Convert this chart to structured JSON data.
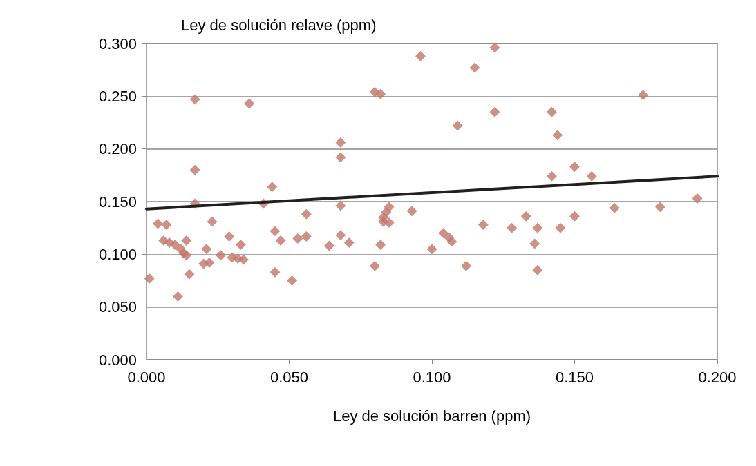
{
  "chart_data": {
    "type": "scatter",
    "ylabel": "Ley de solución relave (ppm)",
    "xlabel": "Ley de solución barren (ppm)",
    "xlim": [
      0,
      0.2
    ],
    "xticks": [
      {
        "value": 0,
        "label": "0.000"
      },
      {
        "value": 0.05,
        "label": "0.050"
      },
      {
        "value": 0.1,
        "label": "0.100"
      },
      {
        "value": 0.15,
        "label": "0.150"
      },
      {
        "value": 0.2,
        "label": "0.200"
      }
    ],
    "ylim": [
      0,
      0.3
    ],
    "yticks": [
      {
        "value": 0,
        "label": "0.000"
      },
      {
        "value": 0.05,
        "label": "0.050"
      },
      {
        "value": 0.1,
        "label": "0.100"
      },
      {
        "value": 0.15,
        "label": "0.150"
      },
      {
        "value": 0.2,
        "label": "0.200"
      },
      {
        "value": 0.25,
        "label": "0.250"
      },
      {
        "value": 0.3,
        "label": "0.300"
      }
    ],
    "grid": "y",
    "marker": "diamond",
    "series": [
      {
        "color": "#c0756a",
        "x": [
          0.001,
          0.004,
          0.007,
          0.006,
          0.008,
          0.01,
          0.011,
          0.012,
          0.013,
          0.014,
          0.014,
          0.015,
          0.017,
          0.017,
          0.017,
          0.02,
          0.021,
          0.022,
          0.023,
          0.026,
          0.029,
          0.03,
          0.032,
          0.033,
          0.034,
          0.036,
          0.041,
          0.044,
          0.045,
          0.045,
          0.047,
          0.051,
          0.053,
          0.056,
          0.056,
          0.064,
          0.068,
          0.068,
          0.068,
          0.068,
          0.071,
          0.08,
          0.08,
          0.082,
          0.082,
          0.083,
          0.083,
          0.084,
          0.085,
          0.085,
          0.093,
          0.096,
          0.1,
          0.104,
          0.106,
          0.107,
          0.109,
          0.112,
          0.115,
          0.118,
          0.122,
          0.122,
          0.128,
          0.133,
          0.136,
          0.137,
          0.137,
          0.142,
          0.142,
          0.144,
          0.145,
          0.15,
          0.15,
          0.156,
          0.164,
          0.174,
          0.18,
          0.193
        ],
        "values": [
          0.077,
          0.129,
          0.128,
          0.113,
          0.111,
          0.109,
          0.06,
          0.105,
          0.101,
          0.099,
          0.113,
          0.081,
          0.18,
          0.247,
          0.148,
          0.091,
          0.105,
          0.092,
          0.131,
          0.099,
          0.117,
          0.097,
          0.096,
          0.109,
          0.095,
          0.243,
          0.148,
          0.164,
          0.122,
          0.083,
          0.113,
          0.075,
          0.115,
          0.117,
          0.138,
          0.108,
          0.206,
          0.192,
          0.146,
          0.118,
          0.111,
          0.089,
          0.254,
          0.252,
          0.109,
          0.135,
          0.131,
          0.14,
          0.145,
          0.13,
          0.141,
          0.288,
          0.105,
          0.12,
          0.116,
          0.112,
          0.222,
          0.089,
          0.277,
          0.128,
          0.235,
          0.296,
          0.125,
          0.136,
          0.11,
          0.085,
          0.125,
          0.235,
          0.174,
          0.213,
          0.125,
          0.183,
          0.136,
          0.174,
          0.144,
          0.251,
          0.145,
          0.153
        ]
      },
      {
        "type": "line",
        "color": "#231f20",
        "marker": "none",
        "line_style": "solid",
        "x": [
          0,
          0.2
        ],
        "values": [
          0.143,
          0.174
        ]
      }
    ]
  }
}
